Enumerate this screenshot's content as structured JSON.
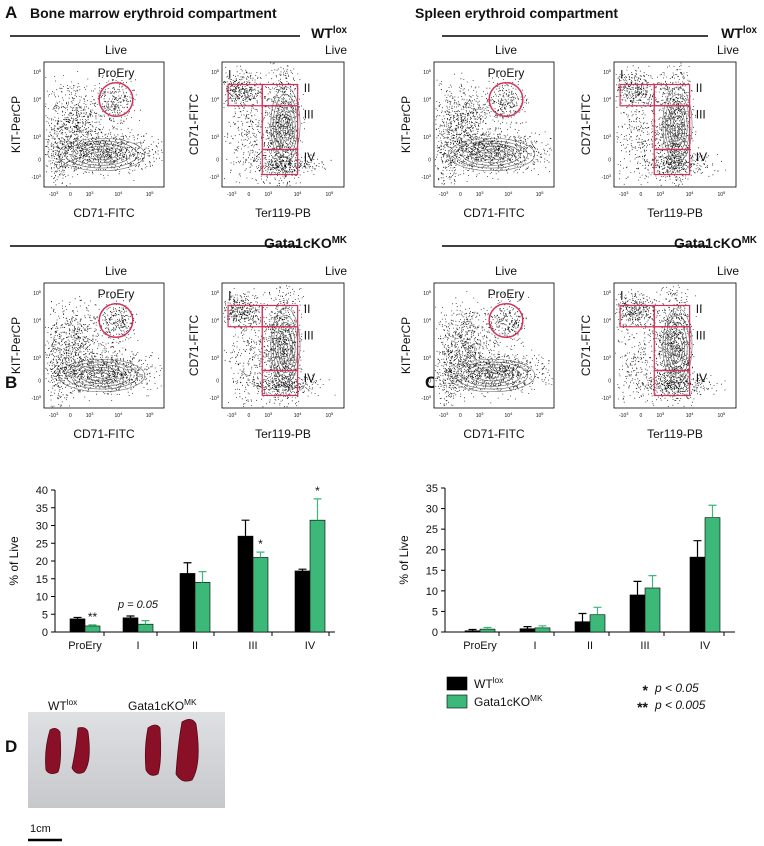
{
  "panel_labels": [
    "A",
    "B",
    "C",
    "D"
  ],
  "panel_a": {
    "titles": [
      "Bone marrow erythroid compartment",
      "Spleen erythroid compartment"
    ],
    "genotypes": [
      {
        "name": "WT",
        "sup": "lox"
      },
      {
        "name": "Gata1cKO",
        "sup": "MK"
      }
    ],
    "gate_parent": "Live",
    "axis_labels": {
      "kit": "KIT-PerCP",
      "cd71": "CD71-FITC",
      "ter119": "Ter119-PB"
    },
    "gates": [
      "ProEry",
      "I",
      "II",
      "III",
      "IV"
    ],
    "flow_ticks": [
      {
        "base": "-10",
        "sup": "3"
      },
      {
        "base": "0"
      },
      {
        "base": "10",
        "sup": "3"
      },
      {
        "base": "10",
        "sup": "4"
      },
      {
        "base": "10",
        "sup": "5"
      }
    ]
  },
  "chart_data": [
    {
      "type": "bar",
      "panel": "B",
      "ylabel": "% of Live",
      "categories": [
        "ProEry",
        "I",
        "II",
        "III",
        "IV"
      ],
      "series": [
        {
          "name": "WT",
          "name_sup": "lox",
          "color": "#000000",
          "values": [
            3.7,
            4.0,
            16.5,
            27,
            17.2
          ],
          "errors": [
            0.4,
            0.5,
            3,
            4.5,
            0.5
          ]
        },
        {
          "name": "Gata1cKO",
          "name_sup": "MK",
          "color": "#3cb878",
          "values": [
            1.7,
            2.2,
            14,
            21,
            31.5
          ],
          "errors": [
            0.3,
            1,
            3,
            1.5,
            6
          ],
          "significance": [
            "**",
            null,
            null,
            "*",
            "*"
          ]
        }
      ],
      "annotations": [
        {
          "text": "p = 0.05",
          "category": "I"
        }
      ],
      "ylim": [
        0,
        40
      ],
      "yticks": [
        0,
        5,
        10,
        15,
        20,
        25,
        30,
        35,
        40
      ]
    },
    {
      "type": "bar",
      "panel": "C",
      "ylabel": "% of Live",
      "categories": [
        "ProEry",
        "I",
        "II",
        "III",
        "IV"
      ],
      "series": [
        {
          "name": "WT",
          "name_sup": "lox",
          "color": "#000000",
          "values": [
            0.3,
            0.8,
            2.5,
            9,
            18.2
          ],
          "errors": [
            0.3,
            0.5,
            2,
            3.3,
            4
          ]
        },
        {
          "name": "Gata1cKO",
          "name_sup": "MK",
          "color": "#3cb878",
          "values": [
            0.7,
            1,
            4.2,
            10.7,
            27.8
          ],
          "errors": [
            0.4,
            0.5,
            1.8,
            3,
            3
          ]
        }
      ],
      "ylim": [
        0,
        35
      ],
      "yticks": [
        0,
        5,
        10,
        15,
        20,
        25,
        30,
        35
      ]
    }
  ],
  "significance_legend": [
    {
      "marker": "*",
      "text": "p < 0.05"
    },
    {
      "marker": "**",
      "text": "p < 0.005"
    }
  ],
  "panel_d": {
    "labels": [
      {
        "name": "WT",
        "sup": "lox"
      },
      {
        "name": "Gata1cKO",
        "sup": "MK"
      }
    ],
    "scale": "1cm"
  }
}
